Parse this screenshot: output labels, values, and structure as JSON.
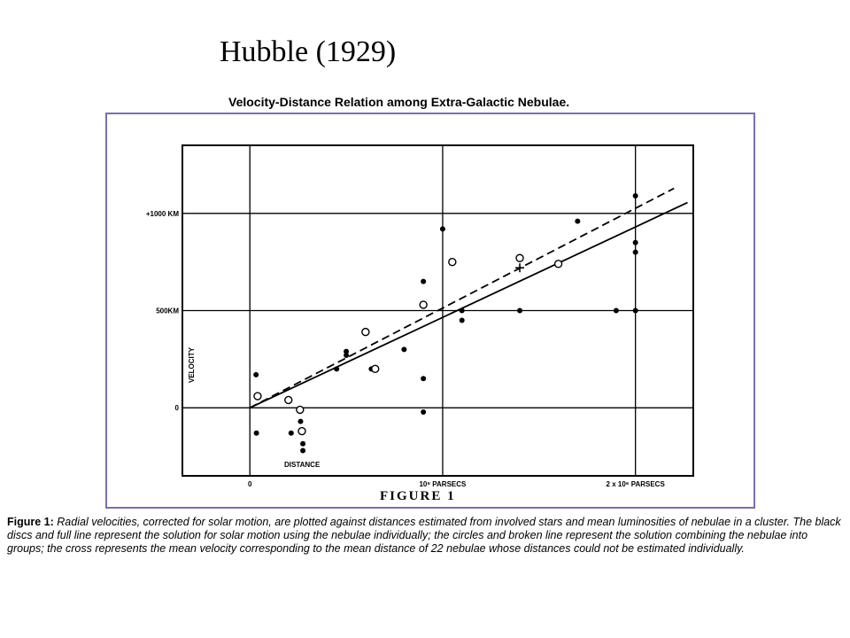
{
  "slide": {
    "title": "Hubble (1929)"
  },
  "caption": {
    "label": "Figure 1:",
    "text": "Radial velocities, corrected for solar motion, are plotted against distances estimated from involved stars and mean luminosities of nebulae in a cluster. The black discs and full line represent the solution for solar motion using the nebulae individually; the circles and broken line represent the solution combining the nebulae into groups; the cross represents the mean velocity corresponding to the mean distance of 22 nebulae whose distances could not be estimated individually."
  },
  "chart_data": {
    "type": "scatter",
    "title": "Velocity-Distance Relation among Extra-Galactic Nebulae.",
    "figure_label": "FIGURE 1",
    "xlabel": "DISTANCE",
    "ylabel": "VELOCITY",
    "x_ticks": [
      {
        "value": 0,
        "label": "0"
      },
      {
        "value": 1000000,
        "label": "10⁶ PARSECS"
      },
      {
        "value": 2000000,
        "label": "2 x 10⁶ PARSECS"
      }
    ],
    "y_ticks": [
      {
        "value": 0,
        "label": "0"
      },
      {
        "value": 500,
        "label": "500KM"
      },
      {
        "value": 1000,
        "label": "+1000 KM"
      }
    ],
    "xlim": [
      -350000,
      2300000
    ],
    "ylim": [
      -350,
      1350
    ],
    "grid": true,
    "series": [
      {
        "marker": "filled-disc",
        "points": [
          [
            32000,
            170
          ],
          [
            34000,
            -130
          ],
          [
            214000,
            -130
          ],
          [
            263000,
            -70
          ],
          [
            275000,
            -185
          ],
          [
            275000,
            -220
          ],
          [
            450000,
            200
          ],
          [
            500000,
            290
          ],
          [
            500000,
            270
          ],
          [
            630000,
            200
          ],
          [
            800000,
            300
          ],
          [
            900000,
            650
          ],
          [
            900000,
            150
          ],
          [
            900000,
            -22
          ],
          [
            1000000,
            920
          ],
          [
            1100000,
            450
          ],
          [
            1100000,
            500
          ],
          [
            1400000,
            500
          ],
          [
            1700000,
            960
          ],
          [
            2000000,
            800
          ],
          [
            2000000,
            850
          ],
          [
            2000000,
            1090
          ],
          [
            1900000,
            500
          ],
          [
            2000000,
            500
          ]
        ]
      },
      {
        "marker": "open-circle",
        "points": [
          [
            40000,
            60
          ],
          [
            260000,
            -10
          ],
          [
            600000,
            390
          ],
          [
            650000,
            200
          ],
          [
            900000,
            530
          ],
          [
            1050000,
            750
          ],
          [
            1400000,
            770
          ],
          [
            1600000,
            740
          ],
          [
            270000,
            -120
          ],
          [
            200000,
            40
          ]
        ]
      },
      {
        "marker": "cross",
        "points": [
          [
            1400000,
            720
          ]
        ]
      }
    ],
    "lines": [
      {
        "style": "solid",
        "slope_km_s_per_mpc": 465,
        "x_range": [
          0,
          2270000
        ]
      },
      {
        "style": "dashed",
        "slope_km_s_per_mpc": 513,
        "x_range": [
          0,
          2200000
        ]
      }
    ]
  }
}
